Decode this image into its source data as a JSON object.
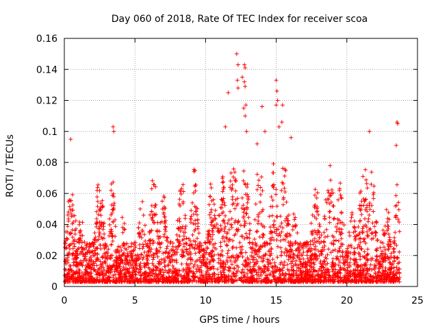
{
  "chart_data": {
    "type": "scatter",
    "title": "Day 060 of 2018, Rate Of TEC Index for receiver scoa",
    "xlabel": "GPS time / hours",
    "ylabel": "ROTI / TECUs",
    "xlim": [
      0,
      25
    ],
    "ylim": [
      0,
      0.16
    ],
    "x_ticks": [
      0,
      5,
      10,
      15,
      20,
      25
    ],
    "x_tick_labels": [
      "0",
      "5",
      "10",
      "15",
      "20",
      "25"
    ],
    "y_ticks": [
      0,
      0.02,
      0.04,
      0.06,
      0.08,
      0.1,
      0.12,
      0.14,
      0.16
    ],
    "y_tick_labels": [
      "0",
      "0.02",
      "0.04",
      "0.06",
      "0.08",
      "0.1",
      "0.12",
      "0.14",
      "0.16"
    ],
    "grid": true,
    "marker": "+",
    "series_color": "#ff0000",
    "series": [
      {
        "name": "ROTI",
        "notable_points": [
          {
            "x": 0.45,
            "y": 0.095
          },
          {
            "x": 3.45,
            "y": 0.103
          },
          {
            "x": 3.5,
            "y": 0.1
          },
          {
            "x": 11.4,
            "y": 0.103
          },
          {
            "x": 11.6,
            "y": 0.125
          },
          {
            "x": 12.2,
            "y": 0.15
          },
          {
            "x": 12.3,
            "y": 0.143
          },
          {
            "x": 12.25,
            "y": 0.133
          },
          {
            "x": 12.3,
            "y": 0.128
          },
          {
            "x": 12.6,
            "y": 0.135
          },
          {
            "x": 12.75,
            "y": 0.143
          },
          {
            "x": 12.8,
            "y": 0.141
          },
          {
            "x": 12.75,
            "y": 0.132
          },
          {
            "x": 12.8,
            "y": 0.129
          },
          {
            "x": 12.7,
            "y": 0.115
          },
          {
            "x": 12.85,
            "y": 0.117
          },
          {
            "x": 12.8,
            "y": 0.11
          },
          {
            "x": 12.9,
            "y": 0.1
          },
          {
            "x": 13.65,
            "y": 0.092
          },
          {
            "x": 14.0,
            "y": 0.116
          },
          {
            "x": 14.2,
            "y": 0.1
          },
          {
            "x": 15.0,
            "y": 0.133
          },
          {
            "x": 15.05,
            "y": 0.126
          },
          {
            "x": 15.1,
            "y": 0.12
          },
          {
            "x": 15.0,
            "y": 0.117
          },
          {
            "x": 15.45,
            "y": 0.117
          },
          {
            "x": 15.2,
            "y": 0.103
          },
          {
            "x": 15.4,
            "y": 0.106
          },
          {
            "x": 16.05,
            "y": 0.096
          },
          {
            "x": 21.6,
            "y": 0.1
          },
          {
            "x": 23.55,
            "y": 0.106
          },
          {
            "x": 23.6,
            "y": 0.105
          },
          {
            "x": 23.5,
            "y": 0.091
          }
        ]
      }
    ]
  }
}
